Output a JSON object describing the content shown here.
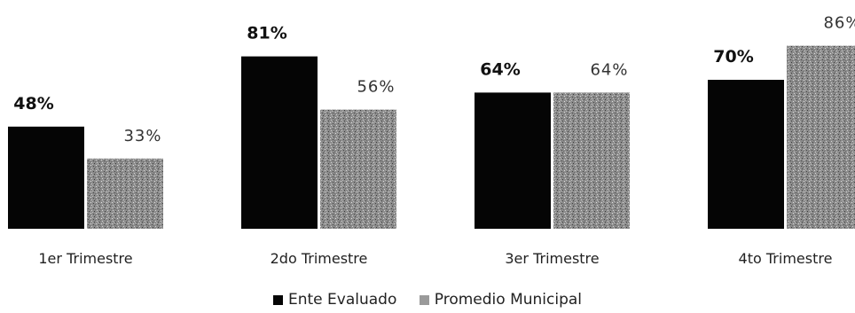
{
  "chart_data": {
    "type": "bar",
    "categories": [
      "1er Trimestre",
      "2do Trimestre",
      "3er Trimestre",
      "4to Trimestre"
    ],
    "series": [
      {
        "name": "Ente Evaluado",
        "values": [
          48,
          81,
          64,
          70
        ],
        "labels": [
          "48%",
          "81%",
          "64%",
          "70%"
        ],
        "color": "#050505"
      },
      {
        "name": "Promedio Municipal",
        "values": [
          33,
          56,
          64,
          86
        ],
        "labels": [
          "33%",
          "56%",
          "64%",
          "86%"
        ],
        "color": "#9a9a9a"
      }
    ],
    "ylim": [
      0,
      100
    ],
    "grid": false,
    "legend_position": "bottom"
  }
}
